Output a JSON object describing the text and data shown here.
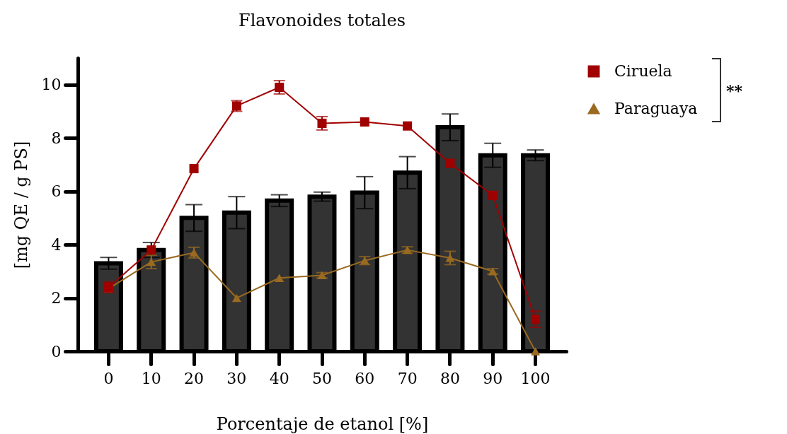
{
  "chart_data": {
    "type": "bar",
    "title": "Flavonoides totales",
    "xlabel": "Porcentaje de etanol [%]",
    "ylabel": "[mg QE / g PS]",
    "categories": [
      "0",
      "10",
      "20",
      "30",
      "40",
      "50",
      "60",
      "70",
      "80",
      "90",
      "100"
    ],
    "ylim": [
      0,
      11
    ],
    "yticks": [
      0,
      2,
      4,
      6,
      8,
      10
    ],
    "legend": "right",
    "annotations": [
      "**"
    ],
    "series": [
      {
        "color": "#333333",
        "values": [
          3.3,
          3.8,
          5.0,
          5.2,
          5.65,
          5.8,
          5.95,
          6.7,
          8.4,
          7.35,
          7.35
        ],
        "errors": [
          0.22,
          0.28,
          0.5,
          0.6,
          0.22,
          0.17,
          0.6,
          0.6,
          0.5,
          0.45,
          0.2
        ]
      },
      {
        "name": "Ciruela",
        "type": "line",
        "color": "#a00000",
        "marker": "square",
        "values": [
          2.4,
          3.8,
          6.85,
          9.2,
          9.9,
          8.55,
          8.6,
          8.45,
          7.05,
          5.85,
          1.2
        ],
        "errors": [
          0.2,
          null,
          null,
          0.2,
          0.25,
          0.25,
          null,
          null,
          null,
          null,
          0.3
        ]
      },
      {
        "name": "Paraguaya",
        "type": "line",
        "color": "#9a6a20",
        "marker": "triangle",
        "values": [
          2.35,
          3.35,
          3.7,
          2.0,
          2.75,
          2.85,
          3.4,
          3.8,
          3.5,
          3.0,
          0
        ],
        "errors": [
          null,
          0.25,
          0.2,
          null,
          null,
          0.1,
          0.15,
          0.12,
          0.25,
          0.1,
          null
        ]
      }
    ]
  }
}
